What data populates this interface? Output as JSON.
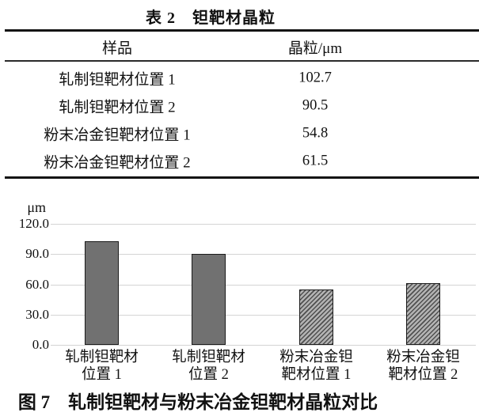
{
  "table": {
    "title": "表 2 钽靶材晶粒",
    "columns": [
      "样品",
      "晶粒/μm"
    ],
    "rows": [
      {
        "sample": "轧制钽靶材位置 1",
        "grain": "102.7"
      },
      {
        "sample": "轧制钽靶材位置 2",
        "grain": "90.5"
      },
      {
        "sample": "粉末冶金钽靶材位置 1",
        "grain": "54.8"
      },
      {
        "sample": "粉末冶金钽靶材位置 2",
        "grain": "61.5"
      }
    ]
  },
  "figure": {
    "caption": "图 7 轧制钽靶材与粉末冶金钽靶材晶粒对比"
  },
  "chart_data": {
    "type": "bar",
    "title": "图 7 轧制钽靶材与粉末冶金钽靶材晶粒对比",
    "categories": [
      "轧制钽靶材位置 1",
      "轧制钽靶材位置 2",
      "粉末冶金钽靶材位置 1",
      "粉末冶金钽靶材位置 2"
    ],
    "category_lines": [
      [
        "轧制钽靶材",
        "位置 1"
      ],
      [
        "轧制钽靶材",
        "位置 2"
      ],
      [
        "粉末冶金钽",
        "靶材位置 1"
      ],
      [
        "粉末冶金钽",
        "靶材位置 2"
      ]
    ],
    "values": [
      102.7,
      90.5,
      54.8,
      61.5
    ],
    "bar_fills": [
      "solid",
      "solid",
      "hatch",
      "hatch"
    ],
    "ylabel": "μm",
    "xlabel": "",
    "ylim": [
      0,
      120
    ],
    "yticks": [
      "120.0",
      "90.0",
      "60.0",
      "30.0",
      "0.0"
    ],
    "grid": "horizontal",
    "legend": "none",
    "colors": {
      "bar_solid": "#717171",
      "bar_border": "#1b1b1b",
      "hatch_dark": "#4f4f4f",
      "hatch_light": "#b3b3b3",
      "gridline": "#d4d4d4",
      "text": "#111111"
    }
  }
}
